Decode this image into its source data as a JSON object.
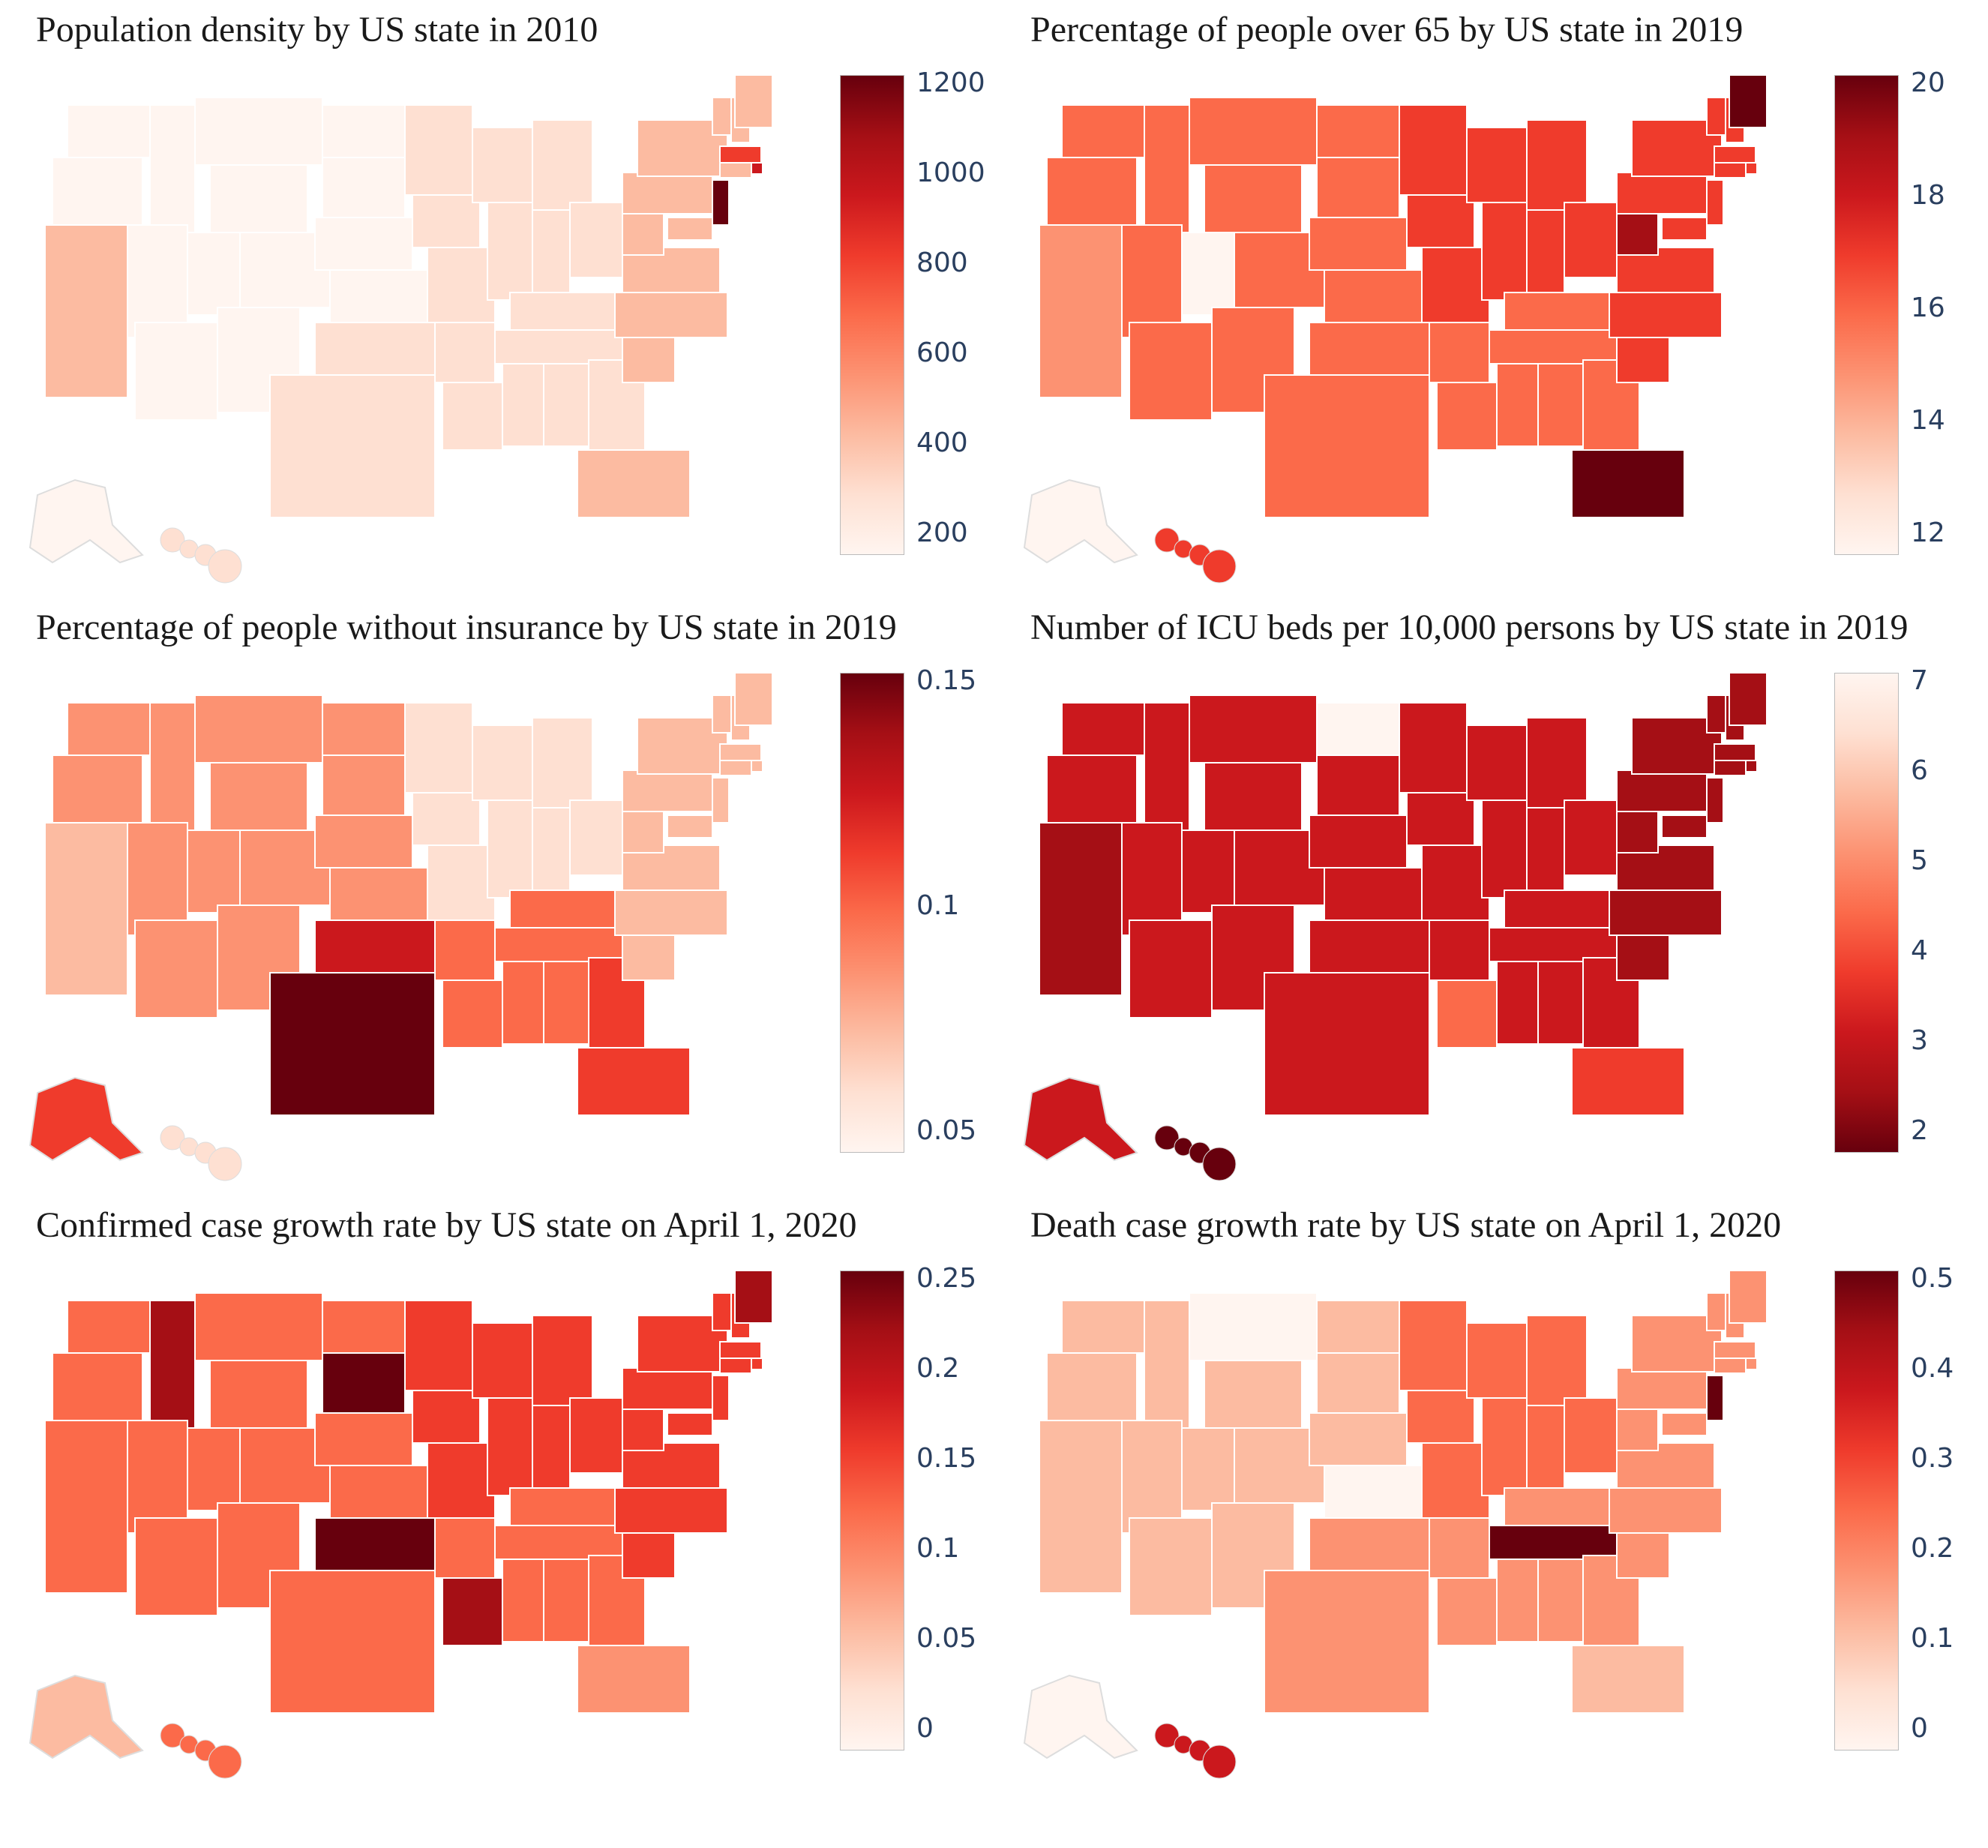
{
  "colors": {
    "scale": [
      "#fff5f0",
      "#fee0d2",
      "#fcbba1",
      "#fc9272",
      "#fb6a4a",
      "#ef3b2c",
      "#cb181d",
      "#a50f15",
      "#67000d"
    ],
    "border": "#ffffff"
  },
  "panels": [
    {
      "title": "Population density by US state in 2010",
      "ticks": [
        "1200",
        "1000",
        "800",
        "600",
        "400",
        "200"
      ],
      "reverse": false,
      "west": 0.05,
      "central": 0.05,
      "south": 0.1,
      "midwest": 0.15,
      "east": 0.25,
      "hot": [
        {
          "state": "New Jersey",
          "level": 0.95
        },
        {
          "state": "Rhode Island",
          "level": 0.8
        },
        {
          "state": "Massachusetts",
          "level": 0.68
        }
      ],
      "alaska": 0.02,
      "hawaii": 0.18,
      "florida": 0.3,
      "california": 0.2
    },
    {
      "title": "Percentage of people over 65 by US state in 2019",
      "ticks": [
        "20",
        "18",
        "16",
        "14",
        "12"
      ],
      "reverse": false,
      "west": 0.5,
      "central": 0.45,
      "south": 0.55,
      "midwest": 0.6,
      "east": 0.62,
      "hot": [
        {
          "state": "Maine",
          "level": 0.95
        },
        {
          "state": "Florida",
          "level": 0.98
        },
        {
          "state": "West Virginia",
          "level": 0.9
        },
        {
          "state": "Utah",
          "level": 0.0
        }
      ],
      "alaska": 0.02,
      "hawaii": 0.65,
      "florida": 0.98,
      "california": 0.35
    },
    {
      "title": "Percentage of people without insurance by US state in 2019",
      "ticks": [
        "0.15",
        "0.1",
        "0.05"
      ],
      "reverse": false,
      "west": 0.35,
      "central": 0.35,
      "south": 0.45,
      "midwest": 0.18,
      "east": 0.25,
      "hot": [
        {
          "state": "Texas",
          "level": 0.98
        },
        {
          "state": "Oklahoma",
          "level": 0.7
        },
        {
          "state": "Georgia",
          "level": 0.68
        }
      ],
      "alaska": 0.6,
      "hawaii": 0.1,
      "florida": 0.62,
      "california": 0.3
    },
    {
      "title": "Number of ICU beds per 10,000 persons by US state in 2019",
      "ticks": [
        "7",
        "6",
        "5",
        "4",
        "3",
        "2"
      ],
      "reverse": true,
      "west": 0.8,
      "central": 0.72,
      "south": 0.72,
      "midwest": 0.8,
      "east": 0.85,
      "hot": [
        {
          "state": "North Dakota",
          "level": 0.02
        },
        {
          "state": "Hawaii",
          "level": 0.98
        },
        {
          "state": "Louisiana",
          "level": 0.45
        }
      ],
      "alaska": 0.8,
      "hawaii": 0.98,
      "florida": 0.65,
      "california": 0.85
    },
    {
      "title": "Confirmed case growth rate by US state on April 1, 2020",
      "ticks": [
        "0.25",
        "0.2",
        "0.15",
        "0.1",
        "0.05",
        "0"
      ],
      "reverse": false,
      "west": 0.45,
      "central": 0.55,
      "south": 0.45,
      "midwest": 0.62,
      "east": 0.6,
      "hot": [
        {
          "state": "South Dakota",
          "level": 0.98
        },
        {
          "state": "Oklahoma",
          "level": 0.95
        },
        {
          "state": "Louisiana",
          "level": 0.92
        },
        {
          "state": "Idaho",
          "level": 0.88
        },
        {
          "state": "Maine",
          "level": 0.85
        }
      ],
      "alaska": 0.25,
      "hawaii": 0.5,
      "florida": 0.4,
      "california": 0.5
    },
    {
      "title": "Death case growth rate by US state on April 1, 2020",
      "ticks": [
        "0.5",
        "0.4",
        "0.3",
        "0.2",
        "0.1",
        "0"
      ],
      "reverse": false,
      "west": 0.2,
      "central": 0.3,
      "south": 0.35,
      "midwest": 0.45,
      "east": 0.38,
      "hot": [
        {
          "state": "Tennessee",
          "level": 0.98
        },
        {
          "state": "New Jersey",
          "level": 0.95
        },
        {
          "state": "Kansas",
          "level": 0.02
        },
        {
          "state": "Montana",
          "level": 0.02
        }
      ],
      "alaska": 0.05,
      "hawaii": 0.75,
      "florida": 0.25,
      "california": 0.2
    }
  ]
}
